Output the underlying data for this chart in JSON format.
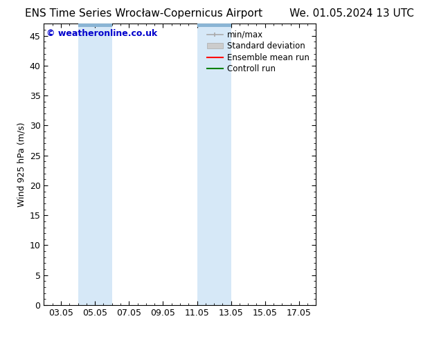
{
  "title_left": "ENS Time Series Wrocław-Copernicus Airport",
  "title_right": "We. 01.05.2024 13 UTC",
  "ylabel": "Wind 925 hPa (m/s)",
  "watermark": "© weatheronline.co.uk",
  "xtick_labels": [
    "03.05",
    "05.05",
    "07.05",
    "09.05",
    "11.05",
    "13.05",
    "15.05",
    "17.05"
  ],
  "xtick_positions": [
    3,
    5,
    7,
    9,
    11,
    13,
    15,
    17
  ],
  "xlim": [
    2.0,
    18.0
  ],
  "ylim": [
    0,
    47
  ],
  "ytick_positions": [
    0,
    5,
    10,
    15,
    20,
    25,
    30,
    35,
    40,
    45
  ],
  "ytick_labels": [
    "0",
    "5",
    "10",
    "15",
    "20",
    "25",
    "30",
    "35",
    "40",
    "45"
  ],
  "shaded_regions": [
    {
      "x_start": 4.0,
      "x_end": 6.0,
      "color": "#d6e8f7"
    },
    {
      "x_start": 11.0,
      "x_end": 13.0,
      "color": "#d6e8f7"
    }
  ],
  "top_bar_color": "#8ab4d4",
  "legend_entries": [
    {
      "label": "min/max",
      "type": "minmax"
    },
    {
      "label": "Standard deviation",
      "type": "patch",
      "color": "#cccccc"
    },
    {
      "label": "Ensemble mean run",
      "type": "line",
      "color": "#ff0000",
      "linewidth": 1.5
    },
    {
      "label": "Controll run",
      "type": "line",
      "color": "#008000",
      "linewidth": 1.5
    }
  ],
  "background_color": "#ffffff",
  "plot_bg_color": "#ffffff",
  "border_color": "#000000",
  "watermark_color": "#0000cc",
  "title_fontsize": 11,
  "label_fontsize": 9,
  "tick_fontsize": 9,
  "legend_fontsize": 8.5
}
